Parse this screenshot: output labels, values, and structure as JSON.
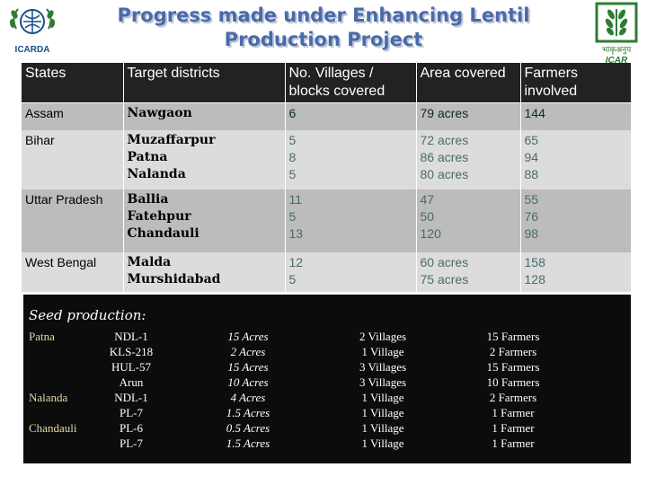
{
  "header": {
    "title_line1": "Progress made under Enhancing Lentil",
    "title_line2": "Production Project",
    "left_logo_text": "ICARDA",
    "right_logo_text": "ICAR",
    "right_logo_hindi": "भाकृअनुप"
  },
  "table": {
    "headers": [
      "States",
      "Target districts",
      "No. Villages / blocks covered",
      "Area covered",
      "Farmers involved"
    ],
    "rows": [
      {
        "state": "Assam",
        "districts": "Nawgaon",
        "villages": "6",
        "area": "79 acres",
        "farmers": "144"
      },
      {
        "state": "Bihar",
        "districts": "Muzaffarpur\nPatna\nNalanda",
        "villages": "5\n8\n5",
        "area": "72 acres\n86 acres\n80 acres",
        "farmers": "65\n94\n88"
      },
      {
        "state": "Uttar Pradesh",
        "districts": "Ballia\nFatehpur\nChandauli",
        "villages": "11\n5\n13",
        "area": "47\n50\n120",
        "farmers": "55\n76\n98"
      },
      {
        "state": "West Bengal",
        "districts": "Malda\nMurshidabad",
        "villages": "12\n5",
        "area": "60 acres\n75 acres",
        "farmers": "158\n128"
      }
    ]
  },
  "seed": {
    "title": "Seed production:",
    "districts": "Patna\n\n\n\nNalanda\n\nChandauli",
    "varieties": "NDL-1\nKLS-218\nHUL-57\nArun\nNDL-1\nPL-7\nPL-6\nPL-7",
    "acres": "15 Acres\n2 Acres\n15 Acres\n10 Acres\n4 Acres\n1.5 Acres\n0.5 Acres\n1.5 Acres",
    "villages": "2 Villages\n1 Village\n3 Villages\n3 Villages\n1 Village\n1 Village\n1 Village\n1 Village",
    "farmers": "15 Farmers\n2 Farmers\n15 Farmers\n10 Farmers\n2 Farmers\n1 Farmer\n1 Farmer\n1 Farmer"
  },
  "colors": {
    "title": "#4a6aa8",
    "header_bg": "#222222",
    "row_dark": "#bcbcbc",
    "row_light": "#dcdcdc",
    "seed_bg": "#0c0c0c",
    "logo_green": "#2e7d32"
  }
}
